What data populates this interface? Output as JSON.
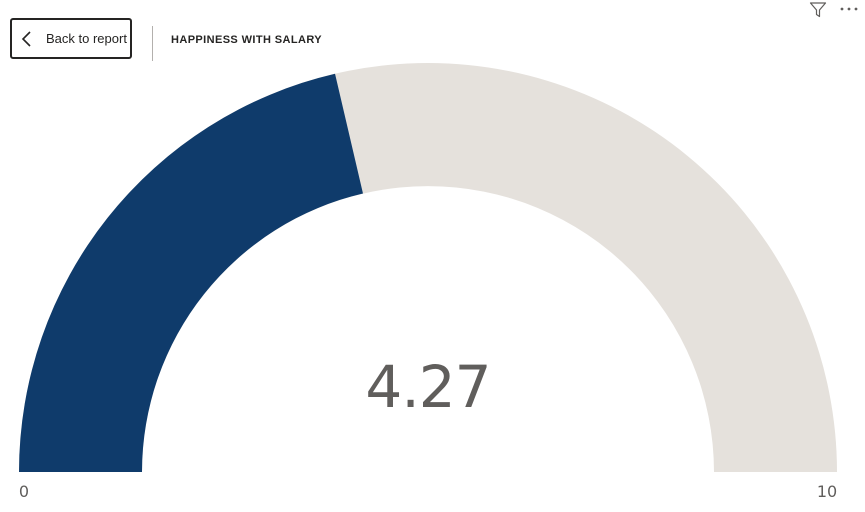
{
  "header": {
    "back_label": "Back to report",
    "title": "HAPPINESS WITH SALARY"
  },
  "icons": {
    "back": "chevron-left-icon",
    "filter": "filter-icon",
    "more": "more-options-icon"
  },
  "colors": {
    "fill": "#0f3b6b",
    "track": "#e5e1dc",
    "text": "#605e5c"
  },
  "chart_data": {
    "type": "gauge",
    "title": "HAPPINESS WITH SALARY",
    "value": 4.27,
    "value_label": "4.27",
    "min": 0,
    "max": 10,
    "min_label": "0",
    "max_label": "10"
  }
}
